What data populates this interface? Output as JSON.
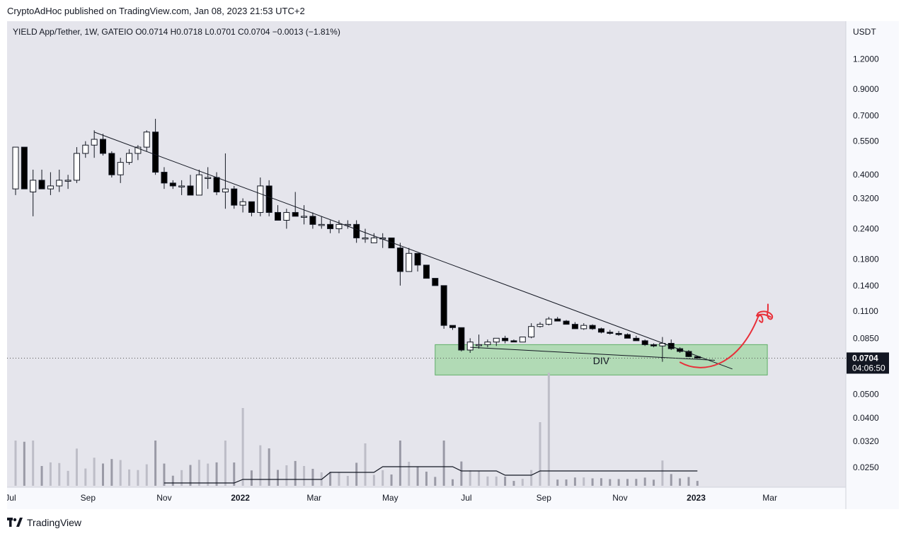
{
  "header": {
    "published": "CryptoAdHoc published on TradingView.com, Jan 08, 2023 21:53 UTC+2"
  },
  "legend": {
    "symbol": "YIELD App/Tether, 1W, GATEIO",
    "open": "O0.0714",
    "high": "H0.0718",
    "low": "L0.0701",
    "close": "C0.0704",
    "change": "−0.0013 (−1.81%)"
  },
  "price_axis": {
    "currency": "USDT",
    "ticks": [
      "1.2000",
      "0.9000",
      "0.7000",
      "0.5500",
      "0.4000",
      "0.3200",
      "0.2400",
      "0.1800",
      "0.1400",
      "0.1100",
      "0.0850",
      "0.0500",
      "0.0400",
      "0.0320",
      "0.0250"
    ],
    "last_price": "0.0704",
    "countdown": "04:06:50"
  },
  "time_axis": {
    "labels": [
      "Jul",
      "Sep",
      "Nov",
      "2022",
      "Mar",
      "May",
      "Jul",
      "Sep",
      "Nov",
      "2023",
      "Mar"
    ]
  },
  "annotation": {
    "zone_label": "DIV"
  },
  "footer": {
    "brand": "TradingView"
  },
  "colors": {
    "zone_fill": "#9fd5a3",
    "zone_border": "#5fae68",
    "hand_drawn_arrow": "#e8303a",
    "axis_bg": "#f8f9fd",
    "chart_bg": "#e5e5ec"
  },
  "chart_data": {
    "type": "candlestick",
    "title": "YIELD App/Tether, 1W, GATEIO",
    "y_scale": "log",
    "ylabel": "USDT",
    "ylim": [
      0.022,
      1.5
    ],
    "candles": [
      {
        "date": "2021-07-05",
        "o": 0.35,
        "h": 0.52,
        "l": 0.33,
        "c": 0.52
      },
      {
        "date": "2021-07-12",
        "o": 0.52,
        "h": 0.52,
        "l": 0.35,
        "c": 0.35
      },
      {
        "date": "2021-07-19",
        "o": 0.34,
        "h": 0.42,
        "l": 0.27,
        "c": 0.38
      },
      {
        "date": "2021-07-26",
        "o": 0.38,
        "h": 0.42,
        "l": 0.35,
        "c": 0.35
      },
      {
        "date": "2021-08-02",
        "o": 0.35,
        "h": 0.41,
        "l": 0.33,
        "c": 0.36
      },
      {
        "date": "2021-08-09",
        "o": 0.36,
        "h": 0.42,
        "l": 0.34,
        "c": 0.38
      },
      {
        "date": "2021-08-16",
        "o": 0.38,
        "h": 0.4,
        "l": 0.35,
        "c": 0.38
      },
      {
        "date": "2021-08-23",
        "o": 0.38,
        "h": 0.52,
        "l": 0.37,
        "c": 0.49
      },
      {
        "date": "2021-08-30",
        "o": 0.49,
        "h": 0.55,
        "l": 0.47,
        "c": 0.53
      },
      {
        "date": "2021-09-06",
        "o": 0.53,
        "h": 0.61,
        "l": 0.47,
        "c": 0.56
      },
      {
        "date": "2021-09-13",
        "o": 0.56,
        "h": 0.59,
        "l": 0.48,
        "c": 0.49
      },
      {
        "date": "2021-09-20",
        "o": 0.49,
        "h": 0.5,
        "l": 0.39,
        "c": 0.4
      },
      {
        "date": "2021-09-27",
        "o": 0.4,
        "h": 0.47,
        "l": 0.37,
        "c": 0.45
      },
      {
        "date": "2021-10-04",
        "o": 0.45,
        "h": 0.51,
        "l": 0.44,
        "c": 0.49
      },
      {
        "date": "2021-10-11",
        "o": 0.49,
        "h": 0.53,
        "l": 0.46,
        "c": 0.52
      },
      {
        "date": "2021-10-18",
        "o": 0.52,
        "h": 0.61,
        "l": 0.5,
        "c": 0.6
      },
      {
        "date": "2021-10-25",
        "o": 0.6,
        "h": 0.68,
        "l": 0.4,
        "c": 0.41
      },
      {
        "date": "2021-11-01",
        "o": 0.41,
        "h": 0.43,
        "l": 0.35,
        "c": 0.37
      },
      {
        "date": "2021-11-08",
        "o": 0.37,
        "h": 0.38,
        "l": 0.35,
        "c": 0.36
      },
      {
        "date": "2021-11-15",
        "o": 0.36,
        "h": 0.38,
        "l": 0.33,
        "c": 0.36
      },
      {
        "date": "2021-11-22",
        "o": 0.36,
        "h": 0.4,
        "l": 0.33,
        "c": 0.33
      },
      {
        "date": "2021-11-29",
        "o": 0.33,
        "h": 0.42,
        "l": 0.33,
        "c": 0.4
      },
      {
        "date": "2021-12-06",
        "o": 0.39,
        "h": 0.43,
        "l": 0.35,
        "c": 0.39
      },
      {
        "date": "2021-12-13",
        "o": 0.39,
        "h": 0.41,
        "l": 0.33,
        "c": 0.34
      },
      {
        "date": "2021-12-20",
        "o": 0.34,
        "h": 0.49,
        "l": 0.29,
        "c": 0.35
      },
      {
        "date": "2021-12-27",
        "o": 0.35,
        "h": 0.36,
        "l": 0.29,
        "c": 0.3
      },
      {
        "date": "2022-01-03",
        "o": 0.3,
        "h": 0.32,
        "l": 0.28,
        "c": 0.31
      },
      {
        "date": "2022-01-10",
        "o": 0.31,
        "h": 0.31,
        "l": 0.27,
        "c": 0.28
      },
      {
        "date": "2022-01-17",
        "o": 0.28,
        "h": 0.39,
        "l": 0.27,
        "c": 0.36
      },
      {
        "date": "2022-01-24",
        "o": 0.36,
        "h": 0.38,
        "l": 0.27,
        "c": 0.28
      },
      {
        "date": "2022-01-31",
        "o": 0.28,
        "h": 0.3,
        "l": 0.26,
        "c": 0.26
      },
      {
        "date": "2022-02-07",
        "o": 0.26,
        "h": 0.29,
        "l": 0.24,
        "c": 0.28
      },
      {
        "date": "2022-02-14",
        "o": 0.28,
        "h": 0.34,
        "l": 0.27,
        "c": 0.27
      },
      {
        "date": "2022-02-21",
        "o": 0.27,
        "h": 0.3,
        "l": 0.25,
        "c": 0.27
      },
      {
        "date": "2022-02-28",
        "o": 0.27,
        "h": 0.28,
        "l": 0.24,
        "c": 0.25
      },
      {
        "date": "2022-03-07",
        "o": 0.25,
        "h": 0.27,
        "l": 0.24,
        "c": 0.25
      },
      {
        "date": "2022-03-14",
        "o": 0.25,
        "h": 0.26,
        "l": 0.23,
        "c": 0.24
      },
      {
        "date": "2022-03-21",
        "o": 0.24,
        "h": 0.26,
        "l": 0.23,
        "c": 0.25
      },
      {
        "date": "2022-03-28",
        "o": 0.25,
        "h": 0.26,
        "l": 0.24,
        "c": 0.25
      },
      {
        "date": "2022-04-04",
        "o": 0.25,
        "h": 0.26,
        "l": 0.21,
        "c": 0.22
      },
      {
        "date": "2022-04-11",
        "o": 0.22,
        "h": 0.24,
        "l": 0.21,
        "c": 0.22
      },
      {
        "date": "2022-04-18",
        "o": 0.21,
        "h": 0.23,
        "l": 0.21,
        "c": 0.22
      },
      {
        "date": "2022-04-25",
        "o": 0.22,
        "h": 0.23,
        "l": 0.2,
        "c": 0.22
      },
      {
        "date": "2022-05-02",
        "o": 0.22,
        "h": 0.22,
        "l": 0.2,
        "c": 0.2
      },
      {
        "date": "2022-05-09",
        "o": 0.2,
        "h": 0.21,
        "l": 0.14,
        "c": 0.16
      },
      {
        "date": "2022-05-16",
        "o": 0.16,
        "h": 0.2,
        "l": 0.16,
        "c": 0.19
      },
      {
        "date": "2022-05-23",
        "o": 0.19,
        "h": 0.19,
        "l": 0.16,
        "c": 0.17
      },
      {
        "date": "2022-05-30",
        "o": 0.17,
        "h": 0.17,
        "l": 0.15,
        "c": 0.15
      },
      {
        "date": "2022-06-06",
        "o": 0.15,
        "h": 0.15,
        "l": 0.14,
        "c": 0.14
      },
      {
        "date": "2022-06-13",
        "o": 0.14,
        "h": 0.14,
        "l": 0.093,
        "c": 0.096
      },
      {
        "date": "2022-06-20",
        "o": 0.096,
        "h": 0.096,
        "l": 0.092,
        "c": 0.094
      },
      {
        "date": "2022-06-27",
        "o": 0.094,
        "h": 0.094,
        "l": 0.075,
        "c": 0.076
      },
      {
        "date": "2022-07-04",
        "o": 0.076,
        "h": 0.085,
        "l": 0.074,
        "c": 0.082
      },
      {
        "date": "2022-07-11",
        "o": 0.08,
        "h": 0.088,
        "l": 0.077,
        "c": 0.08
      },
      {
        "date": "2022-07-18",
        "o": 0.08,
        "h": 0.084,
        "l": 0.078,
        "c": 0.082
      },
      {
        "date": "2022-07-25",
        "o": 0.082,
        "h": 0.085,
        "l": 0.079,
        "c": 0.085
      },
      {
        "date": "2022-08-01",
        "o": 0.085,
        "h": 0.087,
        "l": 0.081,
        "c": 0.083
      },
      {
        "date": "2022-08-08",
        "o": 0.083,
        "h": 0.084,
        "l": 0.082,
        "c": 0.082
      },
      {
        "date": "2022-08-15",
        "o": 0.082,
        "h": 0.086,
        "l": 0.082,
        "c": 0.086
      },
      {
        "date": "2022-08-22",
        "o": 0.086,
        "h": 0.098,
        "l": 0.085,
        "c": 0.095
      },
      {
        "date": "2022-08-29",
        "o": 0.095,
        "h": 0.099,
        "l": 0.094,
        "c": 0.097
      },
      {
        "date": "2022-09-05",
        "o": 0.097,
        "h": 0.104,
        "l": 0.096,
        "c": 0.102
      },
      {
        "date": "2022-09-12",
        "o": 0.102,
        "h": 0.104,
        "l": 0.1,
        "c": 0.1
      },
      {
        "date": "2022-09-19",
        "o": 0.1,
        "h": 0.101,
        "l": 0.097,
        "c": 0.097
      },
      {
        "date": "2022-09-26",
        "o": 0.097,
        "h": 0.099,
        "l": 0.093,
        "c": 0.093
      },
      {
        "date": "2022-10-03",
        "o": 0.093,
        "h": 0.098,
        "l": 0.092,
        "c": 0.096
      },
      {
        "date": "2022-10-10",
        "o": 0.096,
        "h": 0.097,
        "l": 0.092,
        "c": 0.093
      },
      {
        "date": "2022-10-17",
        "o": 0.093,
        "h": 0.094,
        "l": 0.089,
        "c": 0.09
      },
      {
        "date": "2022-10-24",
        "o": 0.09,
        "h": 0.092,
        "l": 0.088,
        "c": 0.089
      },
      {
        "date": "2022-10-31",
        "o": 0.089,
        "h": 0.091,
        "l": 0.087,
        "c": 0.088
      },
      {
        "date": "2022-11-07",
        "o": 0.088,
        "h": 0.089,
        "l": 0.085,
        "c": 0.085
      },
      {
        "date": "2022-11-14",
        "o": 0.085,
        "h": 0.087,
        "l": 0.083,
        "c": 0.083
      },
      {
        "date": "2022-11-21",
        "o": 0.083,
        "h": 0.084,
        "l": 0.079,
        "c": 0.08
      },
      {
        "date": "2022-11-28",
        "o": 0.08,
        "h": 0.081,
        "l": 0.078,
        "c": 0.079
      },
      {
        "date": "2022-12-05",
        "o": 0.079,
        "h": 0.086,
        "l": 0.068,
        "c": 0.081
      },
      {
        "date": "2022-12-12",
        "o": 0.081,
        "h": 0.084,
        "l": 0.076,
        "c": 0.077
      },
      {
        "date": "2022-12-19",
        "o": 0.077,
        "h": 0.078,
        "l": 0.074,
        "c": 0.075
      },
      {
        "date": "2022-12-26",
        "o": 0.075,
        "h": 0.076,
        "l": 0.071,
        "c": 0.0714
      },
      {
        "date": "2023-01-02",
        "o": 0.0714,
        "h": 0.0718,
        "l": 0.0701,
        "c": 0.0704
      }
    ],
    "volume_ma_shown": true,
    "trendlines": [
      {
        "from": {
          "date": "2021-09-06",
          "price": 0.6
        },
        "to": {
          "date": "2023-01-30",
          "price": 0.0635
        }
      },
      {
        "from": {
          "date": "2022-07-04",
          "price": 0.078
        },
        "to": {
          "date": "2023-01-16",
          "price": 0.069
        }
      }
    ],
    "zone": {
      "from_date": "2022-06-06",
      "to_date": "2023-02-27",
      "low": 0.06,
      "high": 0.08,
      "label": "DIV"
    }
  }
}
